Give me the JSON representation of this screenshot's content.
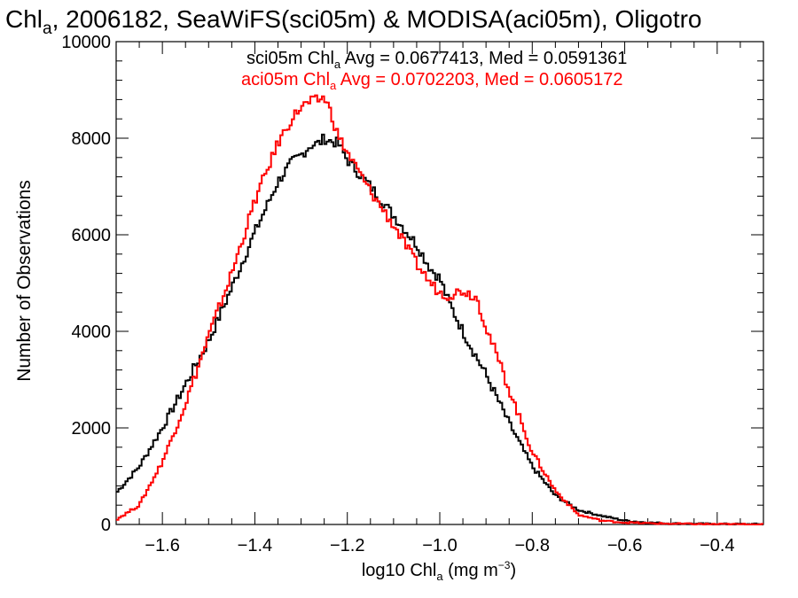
{
  "chart_data": {
    "type": "line",
    "title_parts": {
      "prefix": "Chl",
      "sub": "a",
      "rest": ", 2006182, SeaWiFS(sci05m) & MODISA(aci05m), Oligotro"
    },
    "xlabel_parts": {
      "prefix": "log10 Chl",
      "sub": "a",
      "mid": " (mg m",
      "sup": "−3",
      "end": ")"
    },
    "ylabel": "Number of Observations",
    "xlim": [
      -1.7,
      -0.3
    ],
    "ylim": [
      0,
      10000
    ],
    "x_ticks": [
      -1.6,
      -1.4,
      -1.2,
      -1.0,
      -0.8,
      -0.6,
      -0.4
    ],
    "x_tick_labels": [
      "−1.6",
      "−1.4",
      "−1.2",
      "−1.0",
      "−0.8",
      "−0.6",
      "−0.4"
    ],
    "y_ticks": [
      0,
      2000,
      4000,
      6000,
      8000,
      10000
    ],
    "y_tick_labels": [
      "0",
      "2000",
      "4000",
      "6000",
      "8000",
      "10000"
    ],
    "grid": false,
    "legend_placement": "top-right",
    "series": [
      {
        "name": "sci05m",
        "color": "#000000",
        "stat": {
          "prefix": "sci05m Chl",
          "sub": "a",
          "rest": " Avg = 0.0677413, Med = 0.0591361"
        },
        "x": [
          -1.7,
          -1.65,
          -1.6,
          -1.55,
          -1.5,
          -1.45,
          -1.4,
          -1.35,
          -1.32,
          -1.3,
          -1.28,
          -1.26,
          -1.25,
          -1.24,
          -1.22,
          -1.2,
          -1.15,
          -1.1,
          -1.05,
          -1.02,
          -1.0,
          -0.98,
          -0.95,
          -0.9,
          -0.85,
          -0.8,
          -0.75,
          -0.7,
          -0.65,
          -0.6,
          -0.55,
          -0.5,
          -0.4,
          -0.3
        ],
        "y": [
          650,
          1200,
          2000,
          2900,
          3800,
          4900,
          6050,
          7100,
          7500,
          7650,
          7850,
          7900,
          8000,
          7950,
          7900,
          7550,
          7000,
          6400,
          5800,
          5300,
          5100,
          4600,
          4000,
          3100,
          2100,
          1200,
          600,
          300,
          180,
          80,
          40,
          20,
          10,
          5
        ]
      },
      {
        "name": "aci05m",
        "color": "#ff0000",
        "stat": {
          "prefix": "aci05m Chl",
          "sub": "a",
          "rest": " Avg = 0.0702203, Med = 0.0605172"
        },
        "x": [
          -1.7,
          -1.65,
          -1.6,
          -1.55,
          -1.5,
          -1.45,
          -1.4,
          -1.35,
          -1.32,
          -1.3,
          -1.28,
          -1.26,
          -1.25,
          -1.24,
          -1.22,
          -1.2,
          -1.15,
          -1.1,
          -1.05,
          -1.02,
          -1.0,
          -0.98,
          -0.95,
          -0.92,
          -0.9,
          -0.85,
          -0.8,
          -0.75,
          -0.7,
          -0.65,
          -0.6,
          -0.55,
          -0.5,
          -0.4,
          -0.3
        ],
        "y": [
          100,
          400,
          1300,
          2500,
          3900,
          5200,
          6700,
          7900,
          8400,
          8650,
          8750,
          8800,
          8850,
          8650,
          8050,
          7700,
          6900,
          6200,
          5400,
          5000,
          4800,
          4750,
          4850,
          4700,
          4100,
          2800,
          1500,
          700,
          200,
          80,
          40,
          25,
          15,
          5,
          2
        ]
      }
    ]
  }
}
